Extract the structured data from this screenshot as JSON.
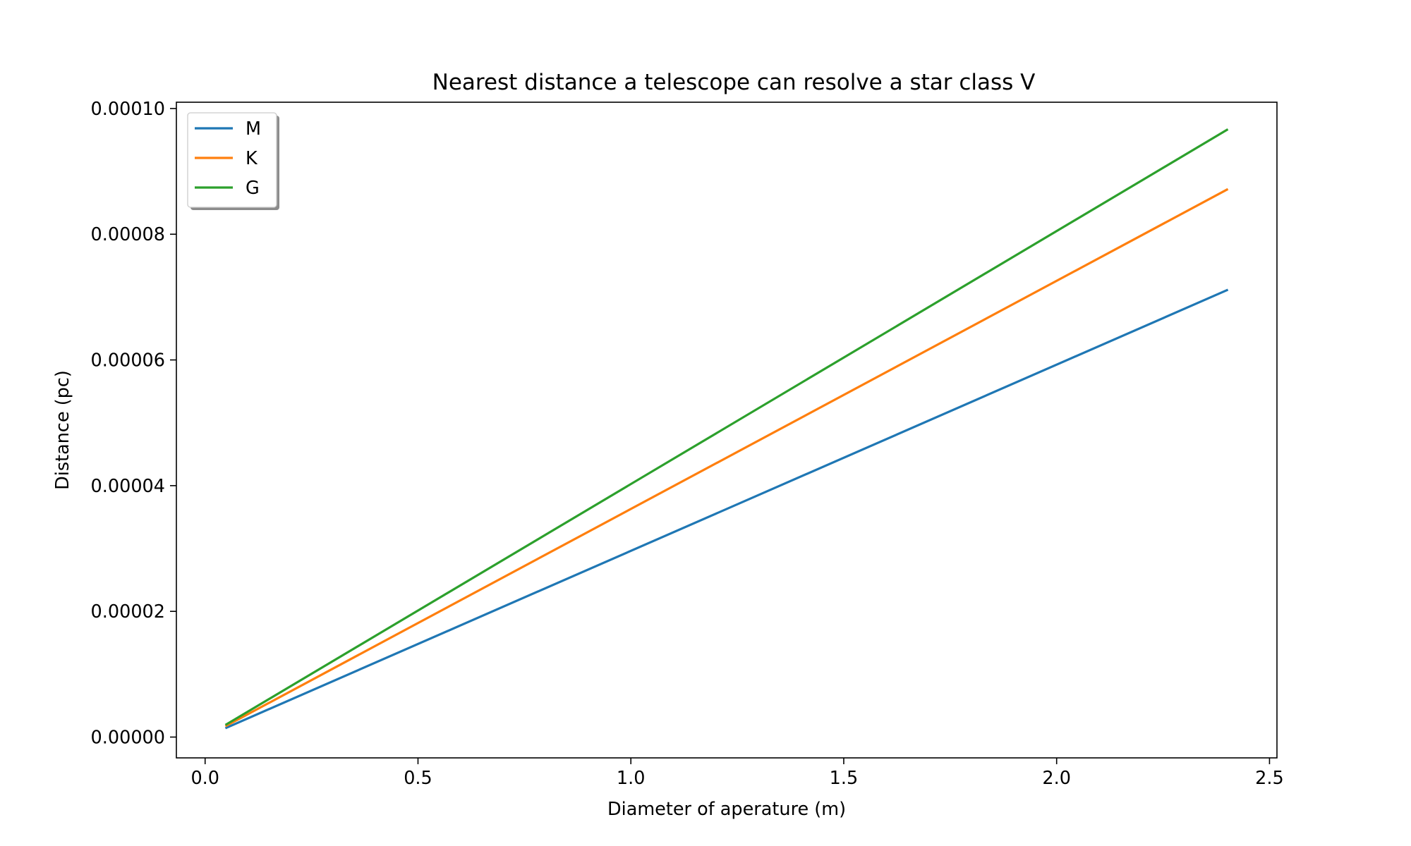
{
  "chart_data": {
    "type": "line",
    "title": "Nearest distance a telescope can resolve a star class V",
    "xlabel": "Diameter of aperature (m)",
    "ylabel": "Distance (pc)",
    "xlim": [
      -0.0675,
      2.5175
    ],
    "ylim": [
      -3.31e-06,
      0.000101
    ],
    "xticks": [
      0.0,
      0.5,
      1.0,
      1.5,
      2.0,
      2.5
    ],
    "xtick_labels": [
      "0.0",
      "0.5",
      "1.0",
      "1.5",
      "2.0",
      "2.5"
    ],
    "yticks": [
      0.0,
      2e-05,
      4e-05,
      6e-05,
      8e-05,
      0.0001
    ],
    "ytick_labels": [
      "0.00000",
      "0.00002",
      "0.00004",
      "0.00006",
      "0.00008",
      "0.00010"
    ],
    "grid": false,
    "legend_position": "top-left",
    "series": [
      {
        "name": "M",
        "color": "#1f77b4",
        "x": [
          0.05,
          2.4
        ],
        "y": [
          1.48e-06,
          7.11e-05
        ]
      },
      {
        "name": "K",
        "color": "#ff7f0e",
        "x": [
          0.05,
          2.4
        ],
        "y": [
          1.81e-06,
          8.71e-05
        ]
      },
      {
        "name": "G",
        "color": "#2ca02c",
        "x": [
          0.05,
          2.4
        ],
        "y": [
          2.02e-06,
          9.66e-05
        ]
      }
    ]
  }
}
